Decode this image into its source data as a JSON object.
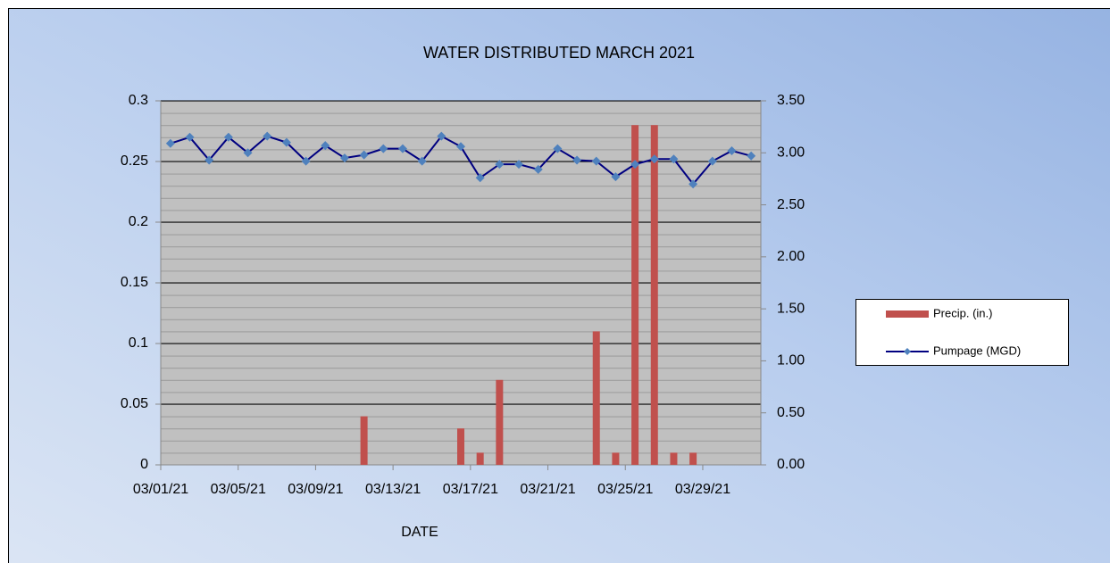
{
  "chart_data": {
    "type": "combo",
    "title": "WATER DISTRIBUTED MARCH 2021",
    "x_label": "DATE",
    "categories": [
      "03/01/21",
      null,
      null,
      null,
      "03/05/21",
      null,
      null,
      null,
      "03/09/21",
      null,
      null,
      null,
      "03/13/21",
      null,
      null,
      null,
      "03/17/21",
      null,
      null,
      null,
      "03/21/21",
      null,
      null,
      null,
      "03/25/21",
      null,
      null,
      null,
      "03/29/21",
      null,
      null
    ],
    "series": [
      {
        "name": "Precip. (in.)",
        "type": "bar",
        "color": "#c0504d",
        "values": [
          0,
          0,
          0,
          0,
          0,
          0,
          0,
          0,
          0,
          0,
          0.04,
          0,
          0,
          0,
          0,
          0.03,
          0.01,
          0.07,
          0,
          0,
          0,
          0,
          0.11,
          0.01,
          0.28,
          0.28,
          0.01,
          0.01,
          0,
          0,
          0
        ]
      },
      {
        "name": "Pumpage (MGD)",
        "type": "line",
        "axis": "y2",
        "color": "#000080",
        "marker_color": "#4f81bd",
        "values": [
          3.09,
          3.15,
          2.93,
          3.15,
          3.0,
          3.16,
          3.1,
          2.92,
          3.07,
          2.95,
          2.98,
          3.04,
          3.04,
          2.92,
          3.16,
          3.06,
          2.76,
          2.89,
          2.89,
          2.84,
          3.04,
          2.93,
          2.92,
          2.77,
          2.89,
          2.94,
          2.94,
          2.7,
          2.92,
          3.02,
          2.97
        ]
      }
    ],
    "ylim": [
      0,
      0.3
    ],
    "yticks": [
      0,
      0.05,
      0.1,
      0.15,
      0.2,
      0.25,
      0.3
    ],
    "y2lim": [
      0,
      3.5
    ],
    "y2ticks": [
      {
        "value": 0,
        "label": "0.00"
      },
      {
        "value": 0.5,
        "label": "0.50"
      },
      {
        "value": 1,
        "label": "1.00"
      },
      {
        "value": 1.5,
        "label": "1.50"
      },
      {
        "value": 2,
        "label": "2.00"
      },
      {
        "value": 2.5,
        "label": "2.50"
      },
      {
        "value": 3,
        "label": "3.00"
      },
      {
        "value": 3.5,
        "label": "3.50"
      }
    ],
    "grid": true,
    "legend": "right"
  }
}
